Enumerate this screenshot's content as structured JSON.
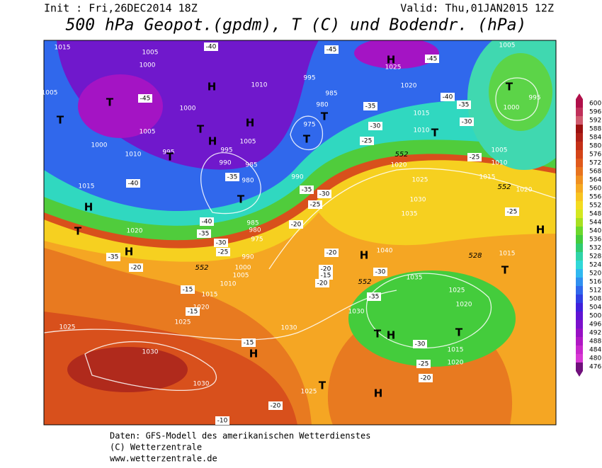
{
  "header": {
    "init": "Init : Fri,26DEC2014 18Z",
    "valid": "Valid: Thu,01JAN2015 12Z",
    "title": "500 hPa Geopot.(gpdm), T (C) und Bodendr. (hPa)"
  },
  "colorbar": {
    "levels": [
      600,
      596,
      592,
      588,
      584,
      580,
      576,
      572,
      568,
      564,
      560,
      556,
      552,
      548,
      544,
      540,
      536,
      532,
      528,
      524,
      520,
      516,
      512,
      508,
      504,
      500,
      496,
      492,
      488,
      484,
      480,
      476
    ],
    "colors": [
      "#b0104a",
      "#c0305a",
      "#d05a6e",
      "#9c1010",
      "#b02018",
      "#c43018",
      "#d44418",
      "#e05a1c",
      "#e8741e",
      "#f09020",
      "#f6aa22",
      "#f8c420",
      "#f4dc20",
      "#d4e820",
      "#a8e020",
      "#6cd82c",
      "#44cc3c",
      "#30cc70",
      "#30d4a8",
      "#30d8d8",
      "#30b8f0",
      "#3090f0",
      "#3068ec",
      "#3040e4",
      "#4020dc",
      "#6014d4",
      "#7c10cc",
      "#9810c4",
      "#b018c4",
      "#c828cc",
      "#d838d4",
      "#70107c"
    ]
  },
  "map": {
    "pressure_labels": [
      "1015",
      "1005",
      "1000",
      "1005",
      "1000",
      "1005",
      "1000",
      "1010",
      "995",
      "1015",
      "1010",
      "1005",
      "995",
      "990",
      "985",
      "980",
      "990",
      "995",
      "985",
      "980",
      "975",
      "1025",
      "1020",
      "1015",
      "1010",
      "1005",
      "995",
      "1000",
      "1005",
      "1010",
      "1015",
      "1020",
      "1020",
      "1025",
      "1030",
      "1035",
      "1020",
      "985",
      "980",
      "975",
      "990",
      "1000",
      "1005",
      "1010",
      "1015",
      "1020",
      "1025",
      "1025",
      "1030",
      "1030",
      "1030",
      "1040",
      "1035",
      "1030",
      "1025",
      "1020",
      "1015",
      "1020",
      "1015",
      "1025"
    ],
    "temperature_labels": [
      "-45",
      "-40",
      "-45",
      "-45",
      "-40",
      "-35",
      "-30",
      "-25",
      "-40",
      "-35",
      "-35",
      "-30",
      "-25",
      "-35",
      "-30",
      "-25",
      "-40",
      "-35",
      "-30",
      "-25",
      "-20",
      "-35",
      "-20",
      "-15",
      "-15",
      "-20",
      "-20",
      "-15",
      "-20",
      "-30",
      "-35",
      "-25",
      "-30",
      "-25",
      "-20",
      "-15",
      "-20",
      "-10"
    ],
    "gpdm_labels": [
      "552",
      "552",
      "552",
      "552",
      "528"
    ],
    "highs": [
      "H",
      "H",
      "H",
      "H",
      "H",
      "H",
      "H",
      "H",
      "H",
      "H",
      "H"
    ],
    "lows": [
      "T",
      "T",
      "T",
      "T",
      "T",
      "T",
      "T",
      "T",
      "T",
      "T",
      "T",
      "T",
      "T",
      "T"
    ]
  },
  "footer": {
    "lines": [
      "Daten: GFS-Modell des amerikanischen Wetterdienstes",
      "(C) Wetterzentrale",
      "www.wetterzentrale.de"
    ]
  }
}
